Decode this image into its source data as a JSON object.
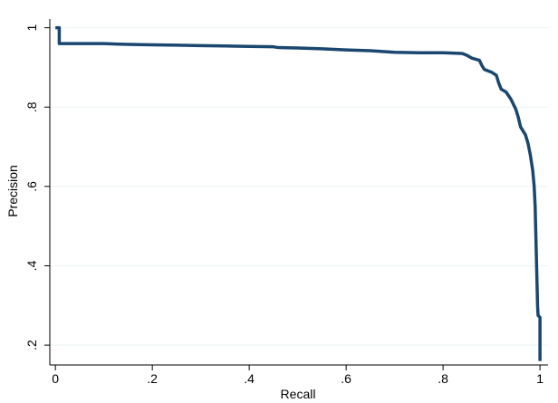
{
  "chart_data": {
    "type": "line",
    "title": "",
    "xlabel": "Recall",
    "ylabel": "Precision",
    "xlim": [
      0,
      1
    ],
    "ylim": [
      0.15,
      1.02
    ],
    "grid": true,
    "legend": "none",
    "x_ticks": [
      {
        "value": 0,
        "label": "0"
      },
      {
        "value": 0.2,
        "label": ".2"
      },
      {
        "value": 0.4,
        "label": ".4"
      },
      {
        "value": 0.6,
        "label": ".6"
      },
      {
        "value": 0.8,
        "label": ".8"
      },
      {
        "value": 1,
        "label": "1"
      }
    ],
    "y_ticks": [
      {
        "value": 0.2,
        "label": ".2"
      },
      {
        "value": 0.4,
        "label": ".4"
      },
      {
        "value": 0.6,
        "label": ".6"
      },
      {
        "value": 0.8,
        "label": ".8"
      },
      {
        "value": 1,
        "label": "1"
      }
    ],
    "series": [
      {
        "color": "#1a476f",
        "points": [
          [
            0.0,
            1.0
          ],
          [
            0.008,
            1.0
          ],
          [
            0.008,
            0.96
          ],
          [
            0.05,
            0.96
          ],
          [
            0.1,
            0.96
          ],
          [
            0.15,
            0.958
          ],
          [
            0.2,
            0.957
          ],
          [
            0.25,
            0.956
          ],
          [
            0.3,
            0.955
          ],
          [
            0.35,
            0.954
          ],
          [
            0.4,
            0.953
          ],
          [
            0.45,
            0.952
          ],
          [
            0.46,
            0.95
          ],
          [
            0.5,
            0.949
          ],
          [
            0.55,
            0.947
          ],
          [
            0.6,
            0.944
          ],
          [
            0.65,
            0.942
          ],
          [
            0.7,
            0.938
          ],
          [
            0.75,
            0.937
          ],
          [
            0.8,
            0.937
          ],
          [
            0.84,
            0.935
          ],
          [
            0.85,
            0.93
          ],
          [
            0.86,
            0.923
          ],
          [
            0.875,
            0.918
          ],
          [
            0.88,
            0.905
          ],
          [
            0.885,
            0.895
          ],
          [
            0.9,
            0.888
          ],
          [
            0.91,
            0.88
          ],
          [
            0.915,
            0.86
          ],
          [
            0.92,
            0.845
          ],
          [
            0.93,
            0.838
          ],
          [
            0.94,
            0.82
          ],
          [
            0.95,
            0.795
          ],
          [
            0.955,
            0.775
          ],
          [
            0.96,
            0.75
          ],
          [
            0.97,
            0.73
          ],
          [
            0.975,
            0.71
          ],
          [
            0.98,
            0.68
          ],
          [
            0.985,
            0.64
          ],
          [
            0.988,
            0.6
          ],
          [
            0.99,
            0.55
          ],
          [
            0.991,
            0.5
          ],
          [
            0.992,
            0.45
          ],
          [
            0.993,
            0.4
          ],
          [
            0.994,
            0.35
          ],
          [
            0.995,
            0.3
          ],
          [
            0.996,
            0.275
          ],
          [
            1.0,
            0.27
          ],
          [
            1.0,
            0.16
          ]
        ]
      }
    ]
  }
}
